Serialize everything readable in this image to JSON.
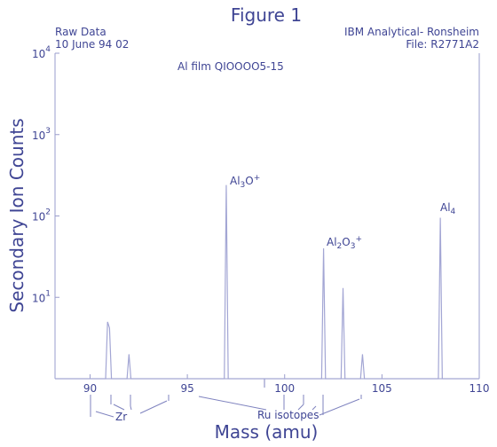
{
  "chart_data": {
    "type": "line",
    "title": "Figure 1",
    "header_left": [
      "Raw Data",
      "10 June 94 02"
    ],
    "header_right": [
      "IBM Analytical- Ronsheim",
      "File: R2771A2"
    ],
    "subtitle": "Al film QIOOOO5-15",
    "y_label": "Secondary Ion Counts",
    "x_label": "Mass (amu)",
    "log_y": true,
    "color": "#a3a6d4",
    "x": [
      88.2,
      90.8,
      90.9,
      91.0,
      91.1,
      91.9,
      92.0,
      92.1,
      96.9,
      97.0,
      97.1,
      101.9,
      102.0,
      102.1,
      102.9,
      103.0,
      103.1,
      103.9,
      104.0,
      104.1,
      107.9,
      108.0,
      108.1,
      110
    ],
    "values": [
      1,
      1,
      5,
      4.2,
      1,
      1,
      2,
      1,
      1,
      240,
      1,
      1,
      40,
      1,
      1,
      13,
      1,
      1,
      2,
      1,
      1,
      95,
      1,
      1
    ],
    "xlim": [
      88.2,
      110
    ],
    "xticks": [
      90,
      95,
      100,
      105,
      110
    ],
    "ylim": [
      1,
      10000
    ],
    "yticks": [
      {
        "value": 10,
        "label": "10",
        "exponent": "1"
      },
      {
        "value": 100,
        "label": "10",
        "exponent": "2"
      },
      {
        "value": 1000,
        "label": "10",
        "exponent": "3"
      },
      {
        "value": 10000,
        "label": "10",
        "exponent": "4"
      }
    ],
    "annotations": [
      {
        "parts": [
          "Al",
          "3",
          "O",
          "+"
        ]
      },
      {
        "parts": [
          "Al",
          "2",
          "O",
          "3",
          "+"
        ]
      },
      {
        "parts": [
          "Al",
          "4"
        ]
      },
      {
        "parts": [
          "Zr"
        ]
      },
      {
        "parts": [
          "Ru isotopes"
        ]
      }
    ]
  }
}
